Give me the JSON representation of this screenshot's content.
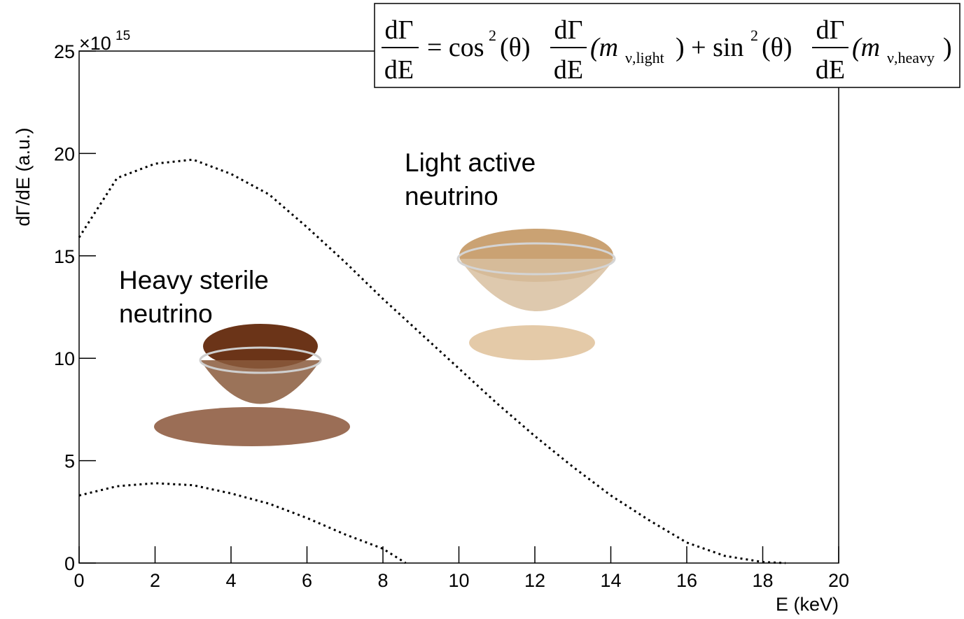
{
  "chart_data": {
    "type": "line",
    "x_label": "E (keV)",
    "y_label": "dΓ/dE (a.u.)",
    "y_multiplier": {
      "base": "×10",
      "exponent": "15"
    },
    "xlim": [
      0,
      20
    ],
    "xticks": [
      0,
      2,
      4,
      6,
      8,
      10,
      12,
      14,
      16,
      18,
      20
    ],
    "ylim": [
      0,
      25
    ],
    "yticks": [
      0,
      5,
      10,
      15,
      20,
      25
    ],
    "line_style": "dotted",
    "series": [
      {
        "label_lines": [
          "Light active",
          "neutrino"
        ],
        "color": "#000000",
        "x": [
          0,
          1,
          2,
          3,
          4,
          5,
          6,
          7,
          8,
          9,
          10,
          11,
          12,
          13,
          14,
          15,
          16,
          17,
          18,
          18.6
        ],
        "values": [
          15.9,
          18.8,
          19.5,
          19.7,
          19.0,
          18.0,
          16.4,
          14.7,
          12.9,
          11.2,
          9.5,
          7.8,
          6.2,
          4.7,
          3.3,
          2.1,
          1.0,
          0.35,
          0.05,
          0
        ]
      },
      {
        "label_lines": [
          "Heavy sterile",
          "neutrino"
        ],
        "color": "#000000",
        "x": [
          0,
          1,
          2,
          3,
          4,
          5,
          6,
          7,
          8,
          8.6
        ],
        "values": [
          3.3,
          3.75,
          3.9,
          3.8,
          3.4,
          2.9,
          2.2,
          1.4,
          0.7,
          0
        ]
      }
    ],
    "formula": {
      "num": "dΓ",
      "den": "dE",
      "eq": "= cos",
      "sq": "2",
      "theta": "(θ)",
      "m": "(m",
      "light": "ν,light",
      "plus": ") + sin",
      "heavy": "ν,heavy",
      "close": ")"
    }
  }
}
